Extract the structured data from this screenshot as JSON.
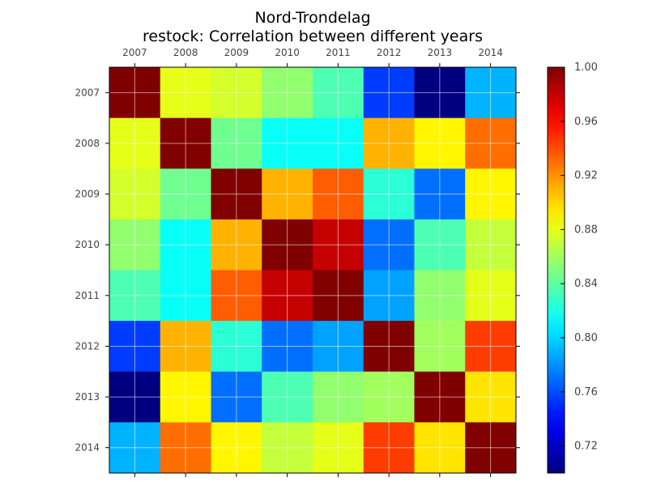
{
  "chart_data": {
    "type": "heatmap",
    "title": "Nord-Trondelag",
    "subtitle": "restock: Correlation between different years",
    "xlabel": "",
    "ylabel": "",
    "x_categories": [
      "2007",
      "2008",
      "2009",
      "2010",
      "2011",
      "2012",
      "2013",
      "2014"
    ],
    "y_categories": [
      "2007",
      "2008",
      "2009",
      "2010",
      "2011",
      "2012",
      "2013",
      "2014"
    ],
    "x_axis_position": "top",
    "values": [
      [
        1.0,
        0.88,
        0.875,
        0.855,
        0.835,
        0.755,
        0.7,
        0.79
      ],
      [
        0.88,
        1.0,
        0.845,
        0.815,
        0.815,
        0.91,
        0.89,
        0.93
      ],
      [
        0.875,
        0.845,
        1.0,
        0.91,
        0.935,
        0.825,
        0.77,
        0.89
      ],
      [
        0.855,
        0.815,
        0.91,
        1.0,
        0.98,
        0.77,
        0.835,
        0.87
      ],
      [
        0.835,
        0.815,
        0.935,
        0.98,
        1.0,
        0.785,
        0.855,
        0.88
      ],
      [
        0.755,
        0.91,
        0.825,
        0.77,
        0.785,
        1.0,
        0.86,
        0.945
      ],
      [
        0.7,
        0.89,
        0.77,
        0.835,
        0.855,
        0.86,
        1.0,
        0.895
      ],
      [
        0.79,
        0.93,
        0.89,
        0.87,
        0.88,
        0.945,
        0.895,
        1.0
      ]
    ],
    "colormap": "jet",
    "vmin": 0.7,
    "vmax": 1.0,
    "colorbar_ticks": [
      "1.00",
      "0.96",
      "0.92",
      "0.88",
      "0.84",
      "0.80",
      "0.76",
      "0.72"
    ],
    "grid": true
  }
}
